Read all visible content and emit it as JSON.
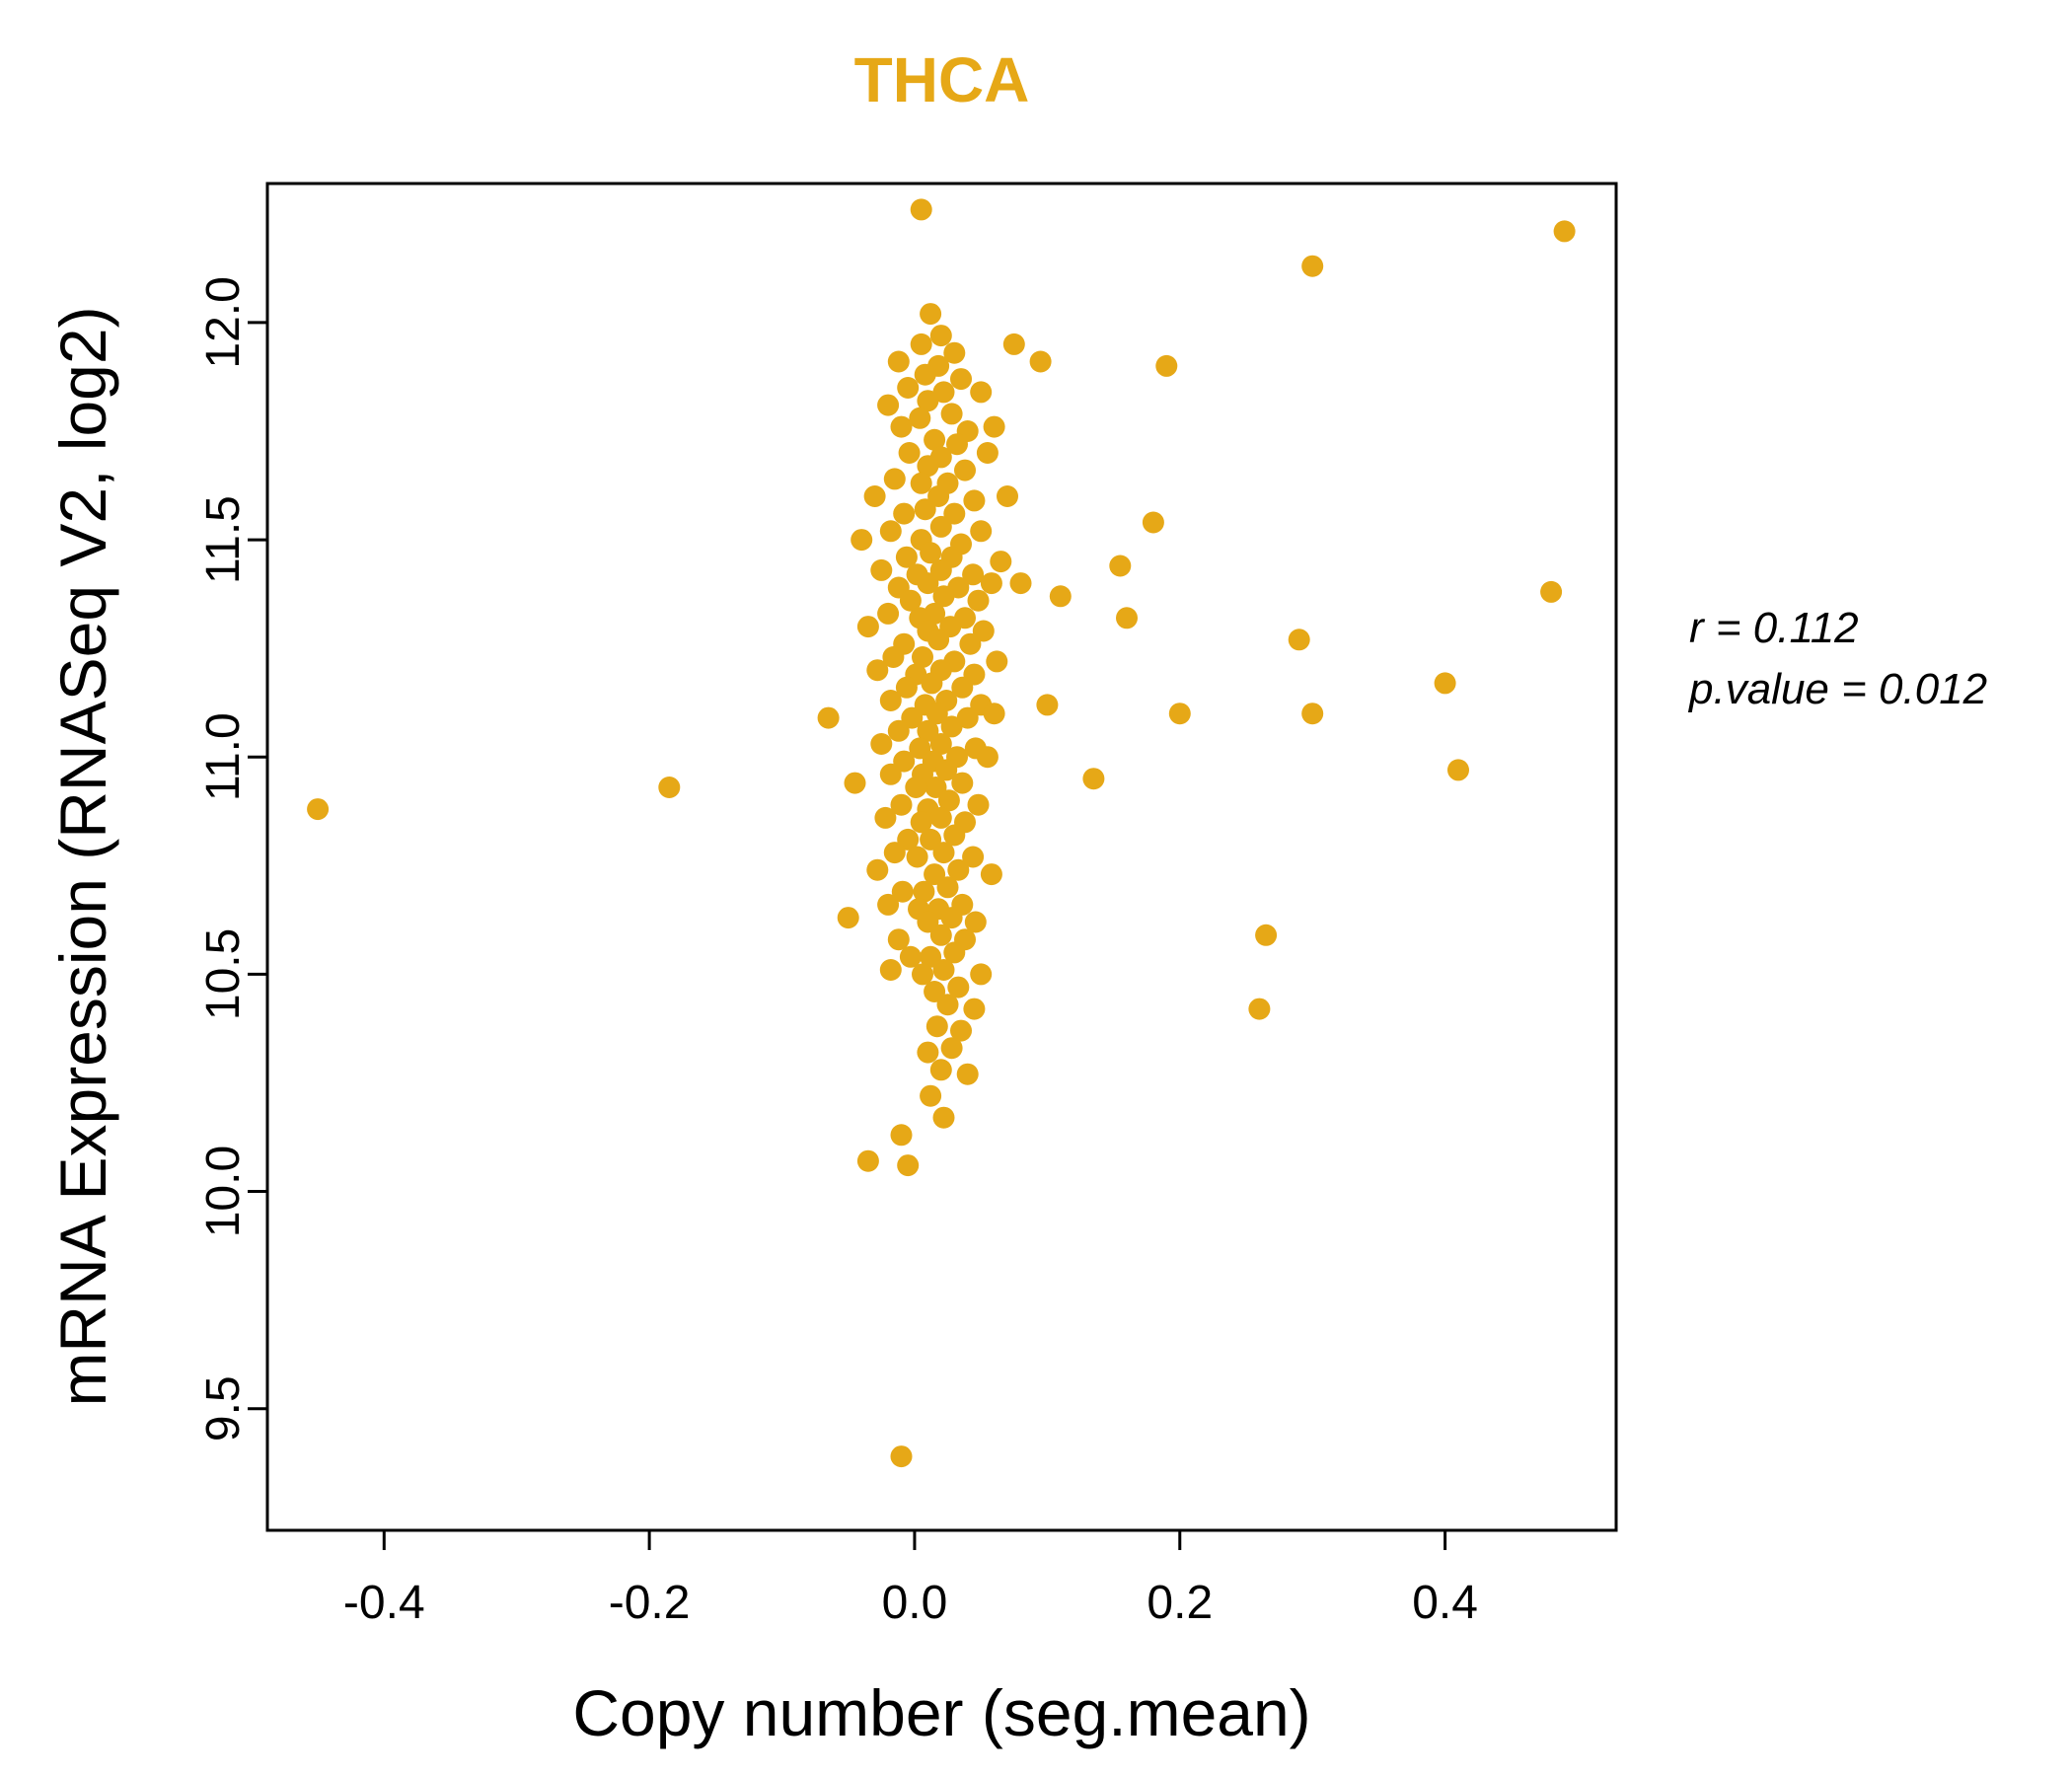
{
  "colors": {
    "accent": "#E6A817",
    "axis": "#000000",
    "background": "#FFFFFF"
  },
  "annotation": {
    "line1": "r = 0.112",
    "line2": "p.value = 0.012"
  },
  "chart_data": {
    "type": "scatter",
    "title": "THCA",
    "xlabel": "Copy number (seg.mean)",
    "ylabel": "mRNA Expression (RNASeq V2, log2)",
    "xlim": [
      -0.488,
      0.529
    ],
    "ylim": [
      9.22,
      12.32
    ],
    "xticks": [
      -0.4,
      -0.2,
      0.0,
      0.2,
      0.4
    ],
    "xtick_labels": [
      "-0.4",
      "-0.2",
      "0.0",
      "0.2",
      "0.4"
    ],
    "yticks": [
      9.5,
      10.0,
      10.5,
      11.0,
      11.5,
      12.0
    ],
    "ytick_labels": [
      "9.5",
      "10.0",
      "10.5",
      "11.0",
      "11.5",
      "12.0"
    ],
    "grid": false,
    "legend": null,
    "point_color": "#E6A817",
    "stats": {
      "r": 0.112,
      "p_value": 0.012
    },
    "points": [
      [
        0.005,
        12.26
      ],
      [
        0.012,
        12.02
      ],
      [
        0.02,
        11.97
      ],
      [
        0.005,
        11.95
      ],
      [
        0.03,
        11.93
      ],
      [
        0.075,
        11.95
      ],
      [
        -0.012,
        11.91
      ],
      [
        0.018,
        11.9
      ],
      [
        0.095,
        11.91
      ],
      [
        0.19,
        11.9
      ],
      [
        0.008,
        11.88
      ],
      [
        0.035,
        11.87
      ],
      [
        -0.005,
        11.85
      ],
      [
        0.022,
        11.84
      ],
      [
        0.05,
        11.84
      ],
      [
        0.01,
        11.82
      ],
      [
        -0.02,
        11.81
      ],
      [
        0.028,
        11.79
      ],
      [
        0.004,
        11.78
      ],
      [
        -0.01,
        11.76
      ],
      [
        0.04,
        11.75
      ],
      [
        0.06,
        11.76
      ],
      [
        0.015,
        11.73
      ],
      [
        0.032,
        11.72
      ],
      [
        -0.004,
        11.7
      ],
      [
        0.02,
        11.69
      ],
      [
        0.055,
        11.7
      ],
      [
        0.01,
        11.67
      ],
      [
        0.038,
        11.66
      ],
      [
        -0.015,
        11.64
      ],
      [
        0.025,
        11.63
      ],
      [
        0.005,
        11.63
      ],
      [
        0.018,
        11.6
      ],
      [
        -0.03,
        11.6
      ],
      [
        0.045,
        11.59
      ],
      [
        0.07,
        11.6
      ],
      [
        0.008,
        11.57
      ],
      [
        0.03,
        11.56
      ],
      [
        -0.008,
        11.56
      ],
      [
        0.02,
        11.53
      ],
      [
        0.05,
        11.52
      ],
      [
        -0.018,
        11.52
      ],
      [
        0.18,
        11.54
      ],
      [
        0.005,
        11.5
      ],
      [
        0.035,
        11.49
      ],
      [
        -0.04,
        11.5
      ],
      [
        0.012,
        11.47
      ],
      [
        0.028,
        11.46
      ],
      [
        -0.006,
        11.46
      ],
      [
        0.065,
        11.45
      ],
      [
        0.02,
        11.43
      ],
      [
        0.044,
        11.42
      ],
      [
        -0.025,
        11.43
      ],
      [
        0.002,
        11.42
      ],
      [
        0.155,
        11.44
      ],
      [
        0.01,
        11.4
      ],
      [
        0.033,
        11.39
      ],
      [
        -0.012,
        11.39
      ],
      [
        0.058,
        11.4
      ],
      [
        0.08,
        11.4
      ],
      [
        0.022,
        11.37
      ],
      [
        -0.003,
        11.36
      ],
      [
        0.048,
        11.36
      ],
      [
        0.11,
        11.37
      ],
      [
        0.48,
        11.38
      ],
      [
        0.015,
        11.33
      ],
      [
        0.038,
        11.32
      ],
      [
        -0.02,
        11.33
      ],
      [
        0.004,
        11.32
      ],
      [
        0.16,
        11.32
      ],
      [
        0.027,
        11.3
      ],
      [
        -0.035,
        11.3
      ],
      [
        0.01,
        11.29
      ],
      [
        0.052,
        11.29
      ],
      [
        0.018,
        11.27
      ],
      [
        0.042,
        11.26
      ],
      [
        -0.008,
        11.26
      ],
      [
        0.29,
        11.27
      ],
      [
        0.006,
        11.23
      ],
      [
        0.03,
        11.22
      ],
      [
        -0.016,
        11.23
      ],
      [
        0.062,
        11.22
      ],
      [
        0.02,
        11.2
      ],
      [
        0.045,
        11.19
      ],
      [
        -0.028,
        11.2
      ],
      [
        0.001,
        11.19
      ],
      [
        0.013,
        11.17
      ],
      [
        0.036,
        11.16
      ],
      [
        -0.006,
        11.16
      ],
      [
        0.4,
        11.17
      ],
      [
        0.024,
        11.13
      ],
      [
        0.05,
        11.12
      ],
      [
        -0.018,
        11.13
      ],
      [
        0.008,
        11.12
      ],
      [
        0.1,
        11.12
      ],
      [
        0.017,
        11.1
      ],
      [
        0.04,
        11.09
      ],
      [
        -0.065,
        11.09
      ],
      [
        -0.002,
        11.09
      ],
      [
        0.06,
        11.1
      ],
      [
        0.2,
        11.1
      ],
      [
        0.3,
        11.1
      ],
      [
        0.028,
        11.07
      ],
      [
        0.01,
        11.06
      ],
      [
        -0.012,
        11.06
      ],
      [
        0.02,
        11.03
      ],
      [
        0.046,
        11.02
      ],
      [
        -0.025,
        11.03
      ],
      [
        0.004,
        11.02
      ],
      [
        0.032,
        11.0
      ],
      [
        0.014,
        10.99
      ],
      [
        -0.008,
        10.99
      ],
      [
        0.055,
        11.0
      ],
      [
        0.024,
        10.97
      ],
      [
        0.006,
        10.96
      ],
      [
        -0.018,
        10.96
      ],
      [
        0.41,
        10.97
      ],
      [
        0.036,
        10.94
      ],
      [
        -0.045,
        10.94
      ],
      [
        0.016,
        10.93
      ],
      [
        0.001,
        10.93
      ],
      [
        -0.185,
        10.93
      ],
      [
        0.135,
        10.95
      ],
      [
        0.026,
        10.9
      ],
      [
        0.048,
        10.89
      ],
      [
        -0.01,
        10.89
      ],
      [
        0.01,
        10.88
      ],
      [
        -0.45,
        10.88
      ],
      [
        0.02,
        10.86
      ],
      [
        0.038,
        10.85
      ],
      [
        -0.022,
        10.86
      ],
      [
        0.005,
        10.85
      ],
      [
        0.03,
        10.82
      ],
      [
        0.012,
        10.81
      ],
      [
        -0.005,
        10.81
      ],
      [
        0.022,
        10.78
      ],
      [
        0.044,
        10.77
      ],
      [
        -0.015,
        10.78
      ],
      [
        0.002,
        10.77
      ],
      [
        0.033,
        10.74
      ],
      [
        0.015,
        10.73
      ],
      [
        -0.028,
        10.74
      ],
      [
        0.058,
        10.73
      ],
      [
        0.025,
        10.7
      ],
      [
        0.007,
        10.69
      ],
      [
        -0.009,
        10.69
      ],
      [
        0.036,
        10.66
      ],
      [
        0.018,
        10.65
      ],
      [
        -0.02,
        10.66
      ],
      [
        0.003,
        10.65
      ],
      [
        0.028,
        10.63
      ],
      [
        -0.05,
        10.63
      ],
      [
        0.01,
        10.62
      ],
      [
        0.046,
        10.62
      ],
      [
        0.02,
        10.59
      ],
      [
        0.038,
        10.58
      ],
      [
        -0.012,
        10.58
      ],
      [
        0.265,
        10.59
      ],
      [
        0.03,
        10.55
      ],
      [
        0.012,
        10.54
      ],
      [
        -0.003,
        10.54
      ],
      [
        0.022,
        10.51
      ],
      [
        0.05,
        10.5
      ],
      [
        -0.018,
        10.51
      ],
      [
        0.006,
        10.5
      ],
      [
        0.033,
        10.47
      ],
      [
        0.015,
        10.46
      ],
      [
        0.025,
        10.43
      ],
      [
        0.045,
        10.42
      ],
      [
        0.26,
        10.42
      ],
      [
        0.017,
        10.38
      ],
      [
        0.035,
        10.37
      ],
      [
        0.028,
        10.33
      ],
      [
        0.01,
        10.32
      ],
      [
        0.02,
        10.28
      ],
      [
        0.04,
        10.27
      ],
      [
        0.012,
        10.22
      ],
      [
        0.022,
        10.17
      ],
      [
        -0.01,
        10.13
      ],
      [
        -0.035,
        10.07
      ],
      [
        -0.005,
        10.06
      ],
      [
        0.3,
        12.13
      ],
      [
        0.49,
        12.21
      ],
      [
        -0.01,
        9.39
      ]
    ]
  }
}
